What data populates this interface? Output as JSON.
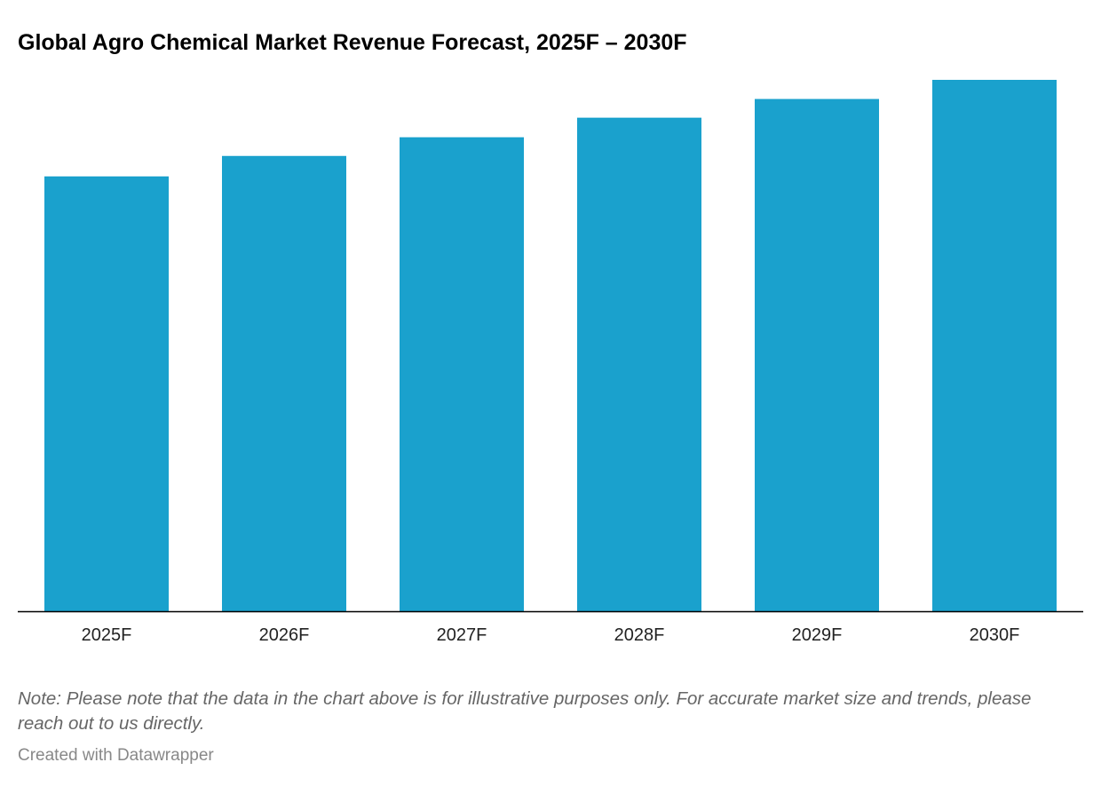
{
  "chart_data": {
    "type": "bar",
    "title": "Global Agro Chemical Market Revenue Forecast, 2025F – 2030F",
    "categories": [
      "2025F",
      "2026F",
      "2027F",
      "2028F",
      "2029F",
      "2030F"
    ],
    "values": [
      100,
      104.7,
      109.0,
      113.5,
      117.8,
      122.2
    ],
    "ylim": [
      0,
      122.2
    ],
    "xlabel": "",
    "ylabel": "",
    "grid": false,
    "bar_color": "#1aa1cd"
  },
  "note": "Note: Please note that the data in the chart above is for illustrative purposes only. For accurate market size and trends, please reach out to us directly.",
  "credit": "Created with Datawrapper"
}
